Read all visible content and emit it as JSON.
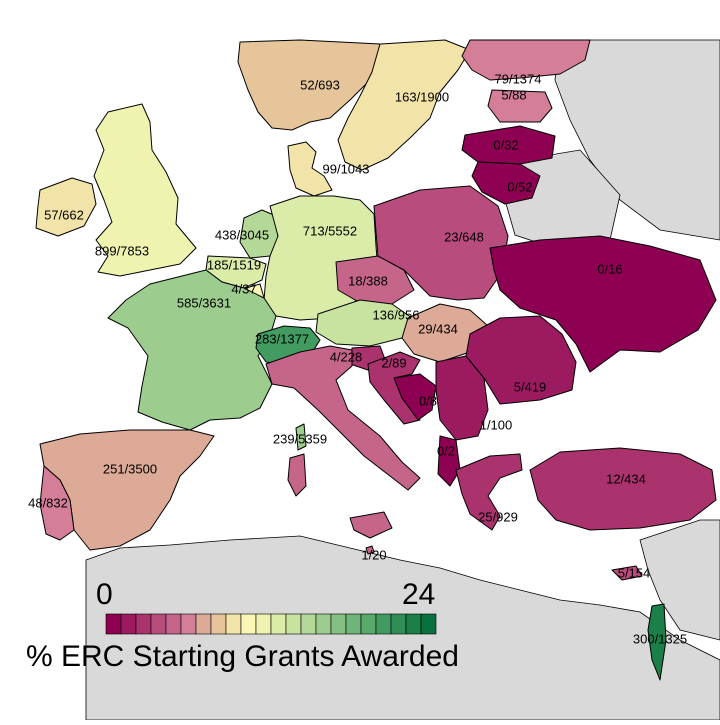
{
  "colors": {
    "background_land": "#d9d9d9",
    "sea": "#ffffff",
    "border": "#000000",
    "palette": [
      "#8e0152",
      "#9c1a60",
      "#aa336e",
      "#b84c7c",
      "#c6658a",
      "#d47e98",
      "#dcaa96",
      "#e6c59a",
      "#f2e4a8",
      "#fbf6b6",
      "#eef3b0",
      "#dbeba8",
      "#c8e2a0",
      "#b3d898",
      "#9ccc8e",
      "#85c083",
      "#6fb478",
      "#59a86c",
      "#429c61",
      "#2e8e55",
      "#1b7f48",
      "#08703c"
    ]
  },
  "legend": {
    "min_label": "0",
    "max_label": "24",
    "title": "% ERC Starting Grants Awarded",
    "steps": 22
  },
  "countries": [
    {
      "id": "uk",
      "label": "899/7853",
      "value": 11.4
    },
    {
      "id": "ireland",
      "label": "57/662",
      "value": 8.6
    },
    {
      "id": "france",
      "label": "585/3631",
      "value": 16.1
    },
    {
      "id": "spain",
      "label": "251/3500",
      "value": 7.2
    },
    {
      "id": "portugal",
      "label": "48/832",
      "value": 5.8
    },
    {
      "id": "belgium",
      "label": "185/1519",
      "value": 12.2
    },
    {
      "id": "netherlands",
      "label": "438/3045",
      "value": 14.4
    },
    {
      "id": "luxembourg",
      "label": "4/37",
      "value": 10.8
    },
    {
      "id": "germany",
      "label": "713/5552",
      "value": 12.8
    },
    {
      "id": "switzerland",
      "label": "283/1377",
      "value": 20.6
    },
    {
      "id": "austria",
      "label": "136/956",
      "value": 14.2
    },
    {
      "id": "italy",
      "label": "239/5359",
      "value": 4.5
    },
    {
      "id": "denmark",
      "label": "99/1043",
      "value": 9.5
    },
    {
      "id": "norway",
      "label": "52/693",
      "value": 7.5
    },
    {
      "id": "sweden",
      "label": "163/1900",
      "value": 8.6
    },
    {
      "id": "finland",
      "label": "79/1374",
      "value": 5.7
    },
    {
      "id": "estonia",
      "label": "5/88",
      "value": 5.7
    },
    {
      "id": "latvia",
      "label": "0/32",
      "value": 0
    },
    {
      "id": "lithuania",
      "label": "0/52",
      "value": 0
    },
    {
      "id": "poland",
      "label": "23/648",
      "value": 3.5
    },
    {
      "id": "czech",
      "label": "18/388",
      "value": 4.6
    },
    {
      "id": "hungary",
      "label": "29/434",
      "value": 6.7
    },
    {
      "id": "slovenia",
      "label": "4/228",
      "value": 1.8
    },
    {
      "id": "croatia",
      "label": "2/89",
      "value": 2.2
    },
    {
      "id": "bosnia",
      "label": "0/8",
      "value": 0
    },
    {
      "id": "serbia",
      "label": "1/100",
      "value": 1.0
    },
    {
      "id": "romania",
      "label": "5/419",
      "value": 1.2
    },
    {
      "id": "ukraine",
      "label": "0/16",
      "value": 0
    },
    {
      "id": "albania",
      "label": "0/2",
      "value": 0
    },
    {
      "id": "greece",
      "label": "25/929",
      "value": 2.7
    },
    {
      "id": "turkey",
      "label": "12/434",
      "value": 2.8
    },
    {
      "id": "malta",
      "label": "1/20",
      "value": 5.0
    },
    {
      "id": "cyprus",
      "label": "5/154",
      "value": 3.2
    },
    {
      "id": "israel",
      "label": "300/1325",
      "value": 22.6
    }
  ]
}
